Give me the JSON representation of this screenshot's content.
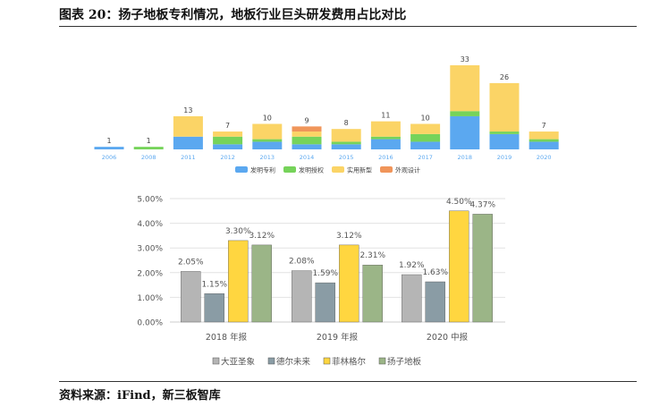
{
  "title": "图表 20：扬子地板专利情况，地板行业巨头研发费用占比对比",
  "source": "资料来源：iFind，新三板智库",
  "chart_data": [
    {
      "type": "bar",
      "stacked": true,
      "categories": [
        "2006",
        "2008",
        "2011",
        "2012",
        "2013",
        "2014",
        "2015",
        "2016",
        "2017",
        "2018",
        "2019",
        "2020"
      ],
      "totals": [
        1,
        1,
        13,
        7,
        10,
        9,
        8,
        11,
        10,
        33,
        26,
        7
      ],
      "series": [
        {
          "name": "发明专利",
          "color": "#5ba8f0",
          "values": [
            1,
            0,
            5,
            2,
            3,
            2,
            2,
            4,
            3,
            13,
            6,
            3
          ]
        },
        {
          "name": "发明授权",
          "color": "#76d35a",
          "values": [
            0,
            1,
            0,
            3,
            1,
            3,
            1,
            1,
            3,
            2,
            1,
            1
          ]
        },
        {
          "name": "实用新型",
          "color": "#fbd466",
          "values": [
            0,
            0,
            8,
            2,
            6,
            2,
            5,
            6,
            4,
            18,
            19,
            3
          ]
        },
        {
          "name": "外观设计",
          "color": "#f0955a",
          "values": [
            0,
            0,
            0,
            0,
            0,
            2,
            0,
            0,
            0,
            0,
            0,
            0
          ]
        }
      ],
      "legend": "bottom",
      "grid": false
    },
    {
      "type": "bar",
      "categories": [
        "2018 年报",
        "2019 年报",
        "2020 中报"
      ],
      "yticks": [
        "0.00%",
        "1.00%",
        "2.00%",
        "3.00%",
        "4.00%",
        "5.00%"
      ],
      "ylim": [
        0,
        5
      ],
      "series": [
        {
          "name": "大亚圣象",
          "color": "#b5b5b5",
          "values": [
            2.05,
            2.08,
            1.92
          ],
          "labels": [
            "2.05%",
            "2.08%",
            "1.92%"
          ]
        },
        {
          "name": "德尔未来",
          "color": "#8a9ca5",
          "values": [
            1.15,
            1.59,
            1.63
          ],
          "labels": [
            "1.15%",
            "1.59%",
            "1.63%"
          ]
        },
        {
          "name": "菲林格尔",
          "color": "#ffd640",
          "values": [
            3.3,
            3.12,
            4.5
          ],
          "labels": [
            "3.30%",
            "3.12%",
            "4.50%"
          ]
        },
        {
          "name": "扬子地板",
          "color": "#9bb587",
          "values": [
            3.12,
            2.31,
            4.37
          ],
          "labels": [
            "3.12%",
            "2.31%",
            "4.37%"
          ]
        }
      ],
      "legend": "bottom",
      "grid": true
    }
  ]
}
